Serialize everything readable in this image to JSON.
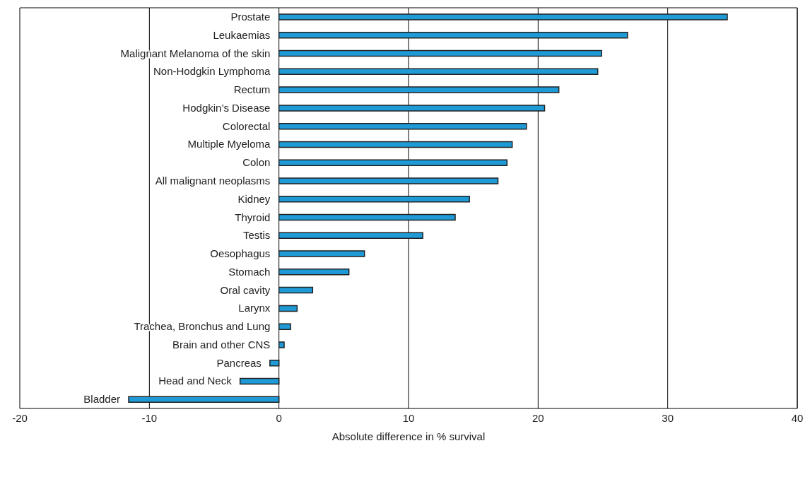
{
  "chart_data": {
    "type": "bar",
    "orientation": "horizontal",
    "xlabel": "Absolute difference in % survival",
    "categories": [
      "Prostate",
      "Leukaemias",
      "Malignant Melanoma of the skin",
      "Non-Hodgkin Lymphoma",
      "Rectum",
      "Hodgkin’s Disease",
      "Colorectal",
      "Multiple Myeloma",
      "Colon",
      "All malignant neoplasms",
      "Kidney",
      "Thyroid",
      "Testis",
      "Oesophagus",
      "Stomach",
      "Oral cavity",
      "Larynx",
      "Trachea, Bronchus and Lung",
      "Brain and other CNS",
      "Pancreas",
      "Head and Neck",
      "Bladder"
    ],
    "values": [
      34.6,
      26.9,
      24.9,
      24.6,
      21.6,
      20.5,
      19.1,
      18.0,
      17.6,
      16.9,
      14.7,
      13.6,
      11.1,
      6.6,
      5.4,
      2.6,
      1.4,
      0.9,
      0.4,
      -0.7,
      -3.0,
      -11.6
    ],
    "color": "#1e9bd7",
    "xlim": [
      -20,
      40
    ],
    "xticks": [
      -20,
      -10,
      0,
      10,
      20,
      30,
      40
    ],
    "grid": "x"
  }
}
